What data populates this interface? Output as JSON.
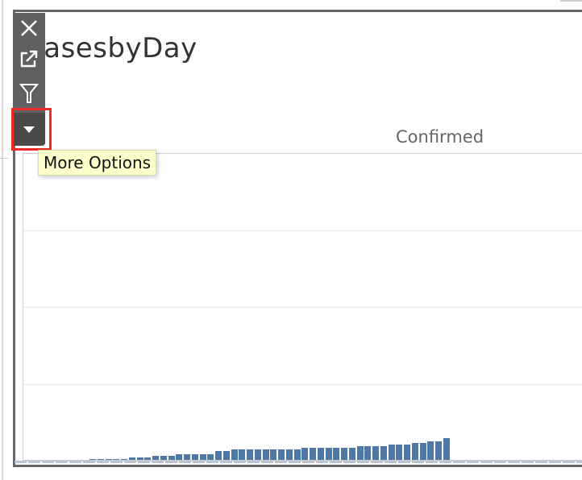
{
  "worksheet": {
    "title": "CasesbyDay",
    "column_header": "Confirmed"
  },
  "toolbar": {
    "buttons": [
      {
        "icon": "close-icon"
      },
      {
        "icon": "open-in-new-window-icon"
      },
      {
        "icon": "filter-icon"
      },
      {
        "icon": "caret-down-icon"
      }
    ],
    "tooltip": "More Options",
    "highlight_color": "#ee2a24"
  },
  "chart_data": {
    "type": "bar",
    "series": [
      {
        "color": "#4e79a7",
        "values": [
          1,
          1,
          1,
          1,
          1,
          3,
          3,
          3,
          5,
          5,
          5,
          7,
          7,
          7,
          7,
          7,
          11,
          11,
          13,
          13,
          13,
          13,
          13,
          13,
          13,
          13,
          13,
          15,
          15,
          15,
          15,
          15,
          15,
          15,
          17,
          17,
          17,
          17,
          19,
          19,
          19,
          21,
          21,
          23,
          23,
          27
        ]
      }
    ],
    "grid": true,
    "xlabel": "",
    "ylabel": ""
  }
}
